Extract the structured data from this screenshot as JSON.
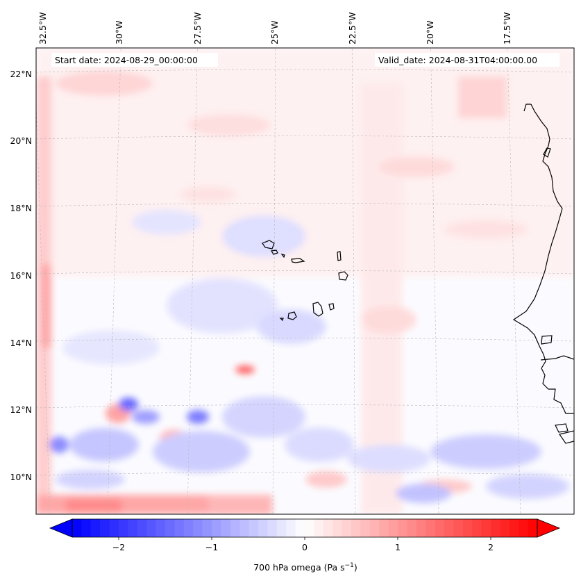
{
  "header": {
    "start_date": "Start date: 2024-08-29_00:00:00",
    "valid_date": "Valid_date: 2024-08-31T04:00:00.00"
  },
  "map": {
    "lon_labels": [
      "32.5°W",
      "30°W",
      "27.5°W",
      "25°W",
      "22.5°W",
      "20°W",
      "17.5°W"
    ],
    "lat_labels": [
      "22°N",
      "20°N",
      "18°N",
      "16°N",
      "14°N",
      "12°N",
      "10°N"
    ],
    "field": "700 hPa omega",
    "colors": {
      "negative": "#0000ff",
      "neutral": "#ffffff",
      "positive": "#ff0000",
      "coast": "#000000",
      "grid": "#b8b8b8"
    }
  },
  "colorbar": {
    "tick_labels": [
      "−2",
      "−1",
      "0",
      "1",
      "2"
    ],
    "tick_values": [
      -2,
      -1,
      0,
      1,
      2
    ],
    "range": [
      -2.5,
      2.5
    ],
    "label": "700 hPa omega (Pa s",
    "label_sup": "−1",
    "label_end": ")"
  }
}
